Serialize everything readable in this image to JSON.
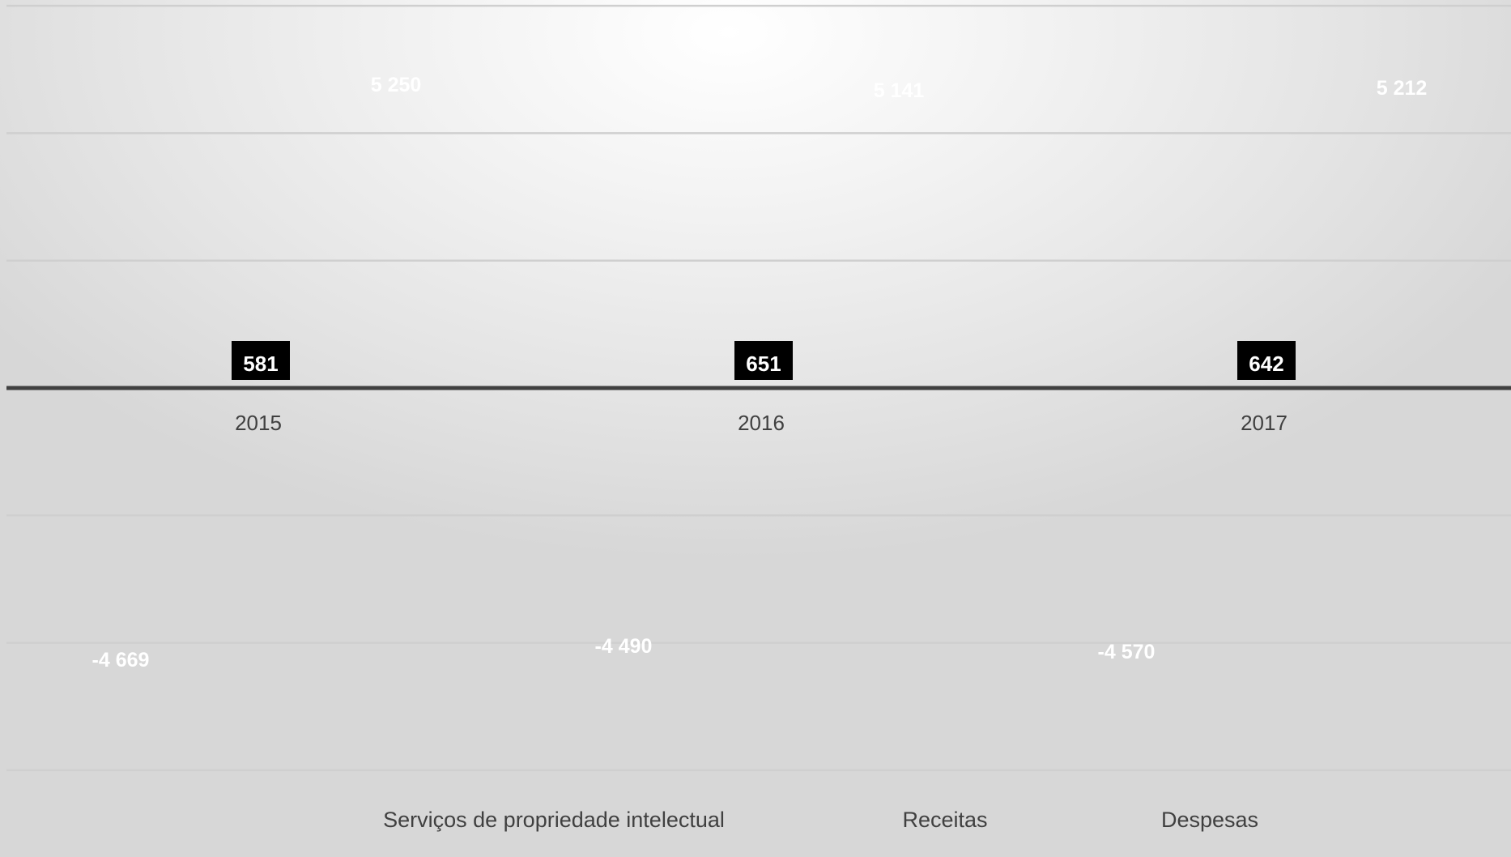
{
  "chart_data": {
    "type": "bar",
    "categories": [
      "2015",
      "2016",
      "2017"
    ],
    "ylim": [
      -6000,
      6000
    ],
    "grid": true,
    "series": [
      {
        "name": "Receitas",
        "values": [
          5250,
          5141,
          5212
        ],
        "color": "#ffffff"
      },
      {
        "name": "Despesas",
        "values": [
          -4669,
          -4490,
          -4570
        ],
        "color": "#ffffff"
      }
    ],
    "net": {
      "values": [
        581,
        651,
        642
      ],
      "label_bg": "#000000"
    },
    "value_labels": [
      "5 250",
      "5 141",
      "5 212",
      "-4 669",
      "-4 490",
      "-4 570",
      "581",
      "651",
      "642"
    ],
    "legend": {
      "position": "bottom",
      "entries": [
        "Serviços de propriedade intelectual",
        "Receitas",
        "Despesas"
      ]
    }
  }
}
